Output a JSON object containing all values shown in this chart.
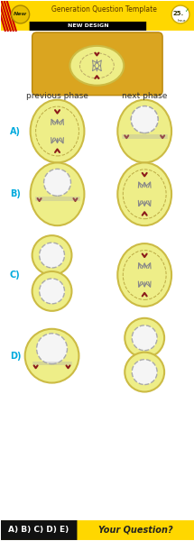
{
  "bg_color": "#ffffff",
  "header_yellow": "#FFD700",
  "header_black": "#000000",
  "new_badge_color": "#FFD700",
  "new_badge_text_color": "#000000",
  "cell_yellow": "#EEEE88",
  "cell_border": "#CCBB44",
  "nucleus_white": "#F5F5F5",
  "chromosome_gray": "#AAAAAA",
  "centromere_red": "#8B1A1A",
  "spindle_gray": "#999999",
  "label_blue": "#00AADD",
  "footer_yellow": "#FFD700",
  "footer_black": "#000000",
  "title": "Generation Question Template",
  "subtitle": "NEW DESIGN",
  "new_text": "New",
  "timer_text": "25.",
  "col1_label": "previous phase",
  "col2_label": "next phase",
  "row_labels": [
    "A)",
    "B)",
    "C)",
    "D)"
  ],
  "footer_options": "A) B) C) D) E)",
  "footer_question": "Your Question?"
}
